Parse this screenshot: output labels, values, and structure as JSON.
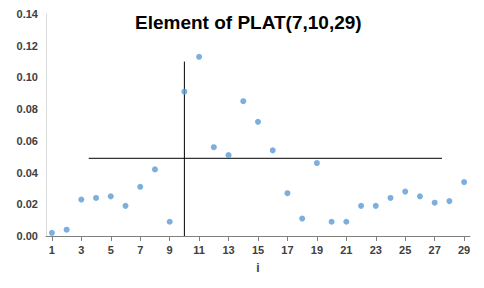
{
  "chart_data": {
    "type": "scatter",
    "title": "Element of PLAT(7,10,29)",
    "x_label": "i",
    "x": [
      1,
      2,
      3,
      4,
      5,
      6,
      7,
      8,
      9,
      10,
      11,
      12,
      13,
      14,
      15,
      16,
      17,
      18,
      19,
      20,
      21,
      22,
      23,
      24,
      25,
      26,
      27,
      28,
      29
    ],
    "values": [
      0.002,
      0.004,
      0.023,
      0.024,
      0.025,
      0.019,
      0.031,
      0.042,
      0.009,
      0.091,
      0.113,
      0.056,
      0.051,
      0.085,
      0.072,
      0.054,
      0.027,
      0.011,
      0.046,
      0.009,
      0.009,
      0.019,
      0.019,
      0.024,
      0.028,
      0.025,
      0.021,
      0.022,
      0.034
    ],
    "color": "#5b9bd5",
    "marker": "circle",
    "xlim": [
      0.6,
      29.4
    ],
    "xticks": [
      1,
      3,
      5,
      7,
      9,
      11,
      13,
      15,
      17,
      19,
      21,
      23,
      25,
      27,
      29
    ],
    "ylim": [
      0,
      0.14
    ],
    "yticks": [
      {
        "value": 0,
        "label": "0.00"
      },
      {
        "value": 0.02,
        "label": "0.02"
      },
      {
        "value": 0.04,
        "label": "0.04"
      },
      {
        "value": 0.06,
        "label": "0.06"
      },
      {
        "value": 0.08,
        "label": "0.08"
      },
      {
        "value": 0.1,
        "label": "0.10"
      },
      {
        "value": 0.12,
        "label": "0.12"
      },
      {
        "value": 0.14,
        "label": "0.14"
      }
    ],
    "grid": false,
    "reference_lines": [
      {
        "x": [
          3.5,
          27.5
        ],
        "y": [
          0.049,
          0.049
        ],
        "color": "#000000",
        "line_style": "solid"
      },
      {
        "x": [
          10,
          10
        ],
        "y": [
          0,
          0.11
        ],
        "color": "#000000",
        "line_style": "solid"
      }
    ]
  }
}
